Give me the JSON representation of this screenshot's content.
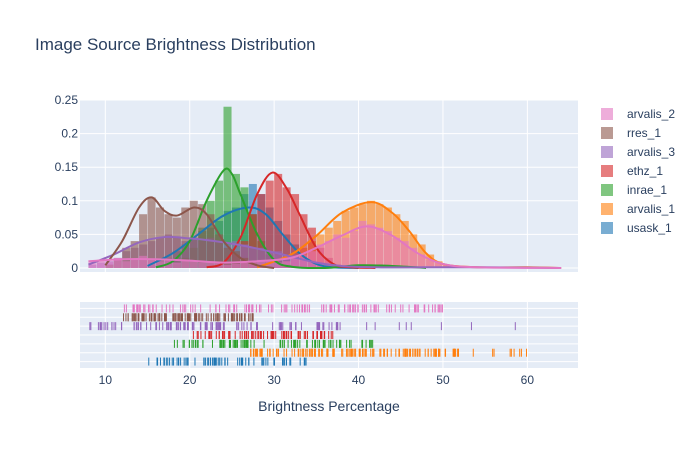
{
  "chart_data": {
    "type": "histogram",
    "title": "Image Source Brightness Distribution",
    "xlabel": "Brightness Percentage",
    "ylabel": "",
    "xlim": [
      7,
      66
    ],
    "ylim": [
      -0.006,
      0.25
    ],
    "x_ticks": [
      10,
      20,
      30,
      40,
      50,
      60
    ],
    "y_ticks": [
      0,
      0.05,
      0.1,
      0.15,
      0.2,
      0.25
    ],
    "y_tick_labels": [
      "0",
      "0.05",
      "0.1",
      "0.15",
      "0.2",
      "0.25"
    ],
    "grid": true,
    "legend_position": "right",
    "series": [
      {
        "name": "arvalis_2",
        "color": "#e377c2",
        "bins": [
          [
            8,
            0.01
          ],
          [
            9,
            0.012
          ],
          [
            10,
            0.01
          ],
          [
            11,
            0.015
          ],
          [
            12,
            0.01
          ],
          [
            13,
            0.012
          ],
          [
            14,
            0.018
          ],
          [
            15,
            0.014
          ],
          [
            16,
            0.01
          ],
          [
            17,
            0.012
          ],
          [
            18,
            0.008
          ],
          [
            19,
            0.012
          ],
          [
            20,
            0.01
          ],
          [
            21,
            0.008
          ],
          [
            22,
            0.01
          ],
          [
            23,
            0.008
          ],
          [
            24,
            0.005
          ],
          [
            25,
            0.006
          ],
          [
            26,
            0.008
          ],
          [
            27,
            0.01
          ],
          [
            28,
            0.012
          ],
          [
            29,
            0.01
          ],
          [
            30,
            0.008
          ],
          [
            31,
            0.01
          ],
          [
            32,
            0.015
          ],
          [
            33,
            0.02
          ],
          [
            34,
            0.025
          ],
          [
            35,
            0.035
          ],
          [
            36,
            0.04
          ],
          [
            37,
            0.05
          ],
          [
            38,
            0.045
          ],
          [
            39,
            0.055
          ],
          [
            40,
            0.07
          ],
          [
            41,
            0.065
          ],
          [
            42,
            0.06
          ],
          [
            43,
            0.055
          ],
          [
            44,
            0.045
          ],
          [
            45,
            0.04
          ],
          [
            46,
            0.03
          ],
          [
            47,
            0.02
          ],
          [
            48,
            0.012
          ],
          [
            49,
            0.008
          ],
          [
            50,
            0.004
          ],
          [
            51,
            0.002
          ]
        ],
        "curve": [
          [
            8,
            0.01
          ],
          [
            12,
            0.013
          ],
          [
            16,
            0.013
          ],
          [
            20,
            0.011
          ],
          [
            24,
            0.008
          ],
          [
            28,
            0.01
          ],
          [
            32,
            0.015
          ],
          [
            35,
            0.03
          ],
          [
            38,
            0.048
          ],
          [
            41,
            0.062
          ],
          [
            44,
            0.048
          ],
          [
            47,
            0.022
          ],
          [
            50,
            0.006
          ],
          [
            54,
            0.001
          ],
          [
            64,
            0
          ]
        ]
      },
      {
        "name": "rres_1",
        "color": "#8c564b",
        "bins": [
          [
            10,
            0.005
          ],
          [
            11,
            0.012
          ],
          [
            12,
            0.03
          ],
          [
            13,
            0.04
          ],
          [
            14,
            0.08
          ],
          [
            15,
            0.105
          ],
          [
            16,
            0.09
          ],
          [
            17,
            0.08
          ],
          [
            18,
            0.075
          ],
          [
            19,
            0.09
          ],
          [
            20,
            0.1
          ],
          [
            21,
            0.095
          ],
          [
            22,
            0.08
          ],
          [
            23,
            0.05
          ],
          [
            24,
            0.03
          ],
          [
            25,
            0.025
          ],
          [
            26,
            0.015
          ],
          [
            27,
            0.01
          ],
          [
            28,
            0.005
          ]
        ],
        "curve": [
          [
            10,
            0.004
          ],
          [
            12,
            0.04
          ],
          [
            14,
            0.09
          ],
          [
            15.5,
            0.105
          ],
          [
            17,
            0.085
          ],
          [
            18.5,
            0.078
          ],
          [
            20.5,
            0.09
          ],
          [
            22,
            0.08
          ],
          [
            24,
            0.04
          ],
          [
            26,
            0.015
          ],
          [
            28,
            0.004
          ],
          [
            30,
            0
          ]
        ]
      },
      {
        "name": "arvalis_3",
        "color": "#9467bd",
        "bins": [
          [
            8,
            0.005
          ],
          [
            9,
            0.008
          ],
          [
            10,
            0.01
          ],
          [
            11,
            0.015
          ],
          [
            12,
            0.025
          ],
          [
            13,
            0.03
          ],
          [
            14,
            0.035
          ],
          [
            15,
            0.04
          ],
          [
            16,
            0.045
          ],
          [
            17,
            0.05
          ],
          [
            18,
            0.045
          ],
          [
            19,
            0.04
          ],
          [
            20,
            0.045
          ],
          [
            21,
            0.04
          ],
          [
            22,
            0.045
          ],
          [
            23,
            0.04
          ],
          [
            24,
            0.035
          ],
          [
            25,
            0.04
          ],
          [
            26,
            0.035
          ],
          [
            27,
            0.03
          ],
          [
            28,
            0.03
          ],
          [
            29,
            0.025
          ],
          [
            30,
            0.025
          ],
          [
            31,
            0.02
          ],
          [
            32,
            0.02
          ],
          [
            33,
            0.015
          ],
          [
            34,
            0.01
          ],
          [
            35,
            0.008
          ],
          [
            36,
            0.005
          ],
          [
            37,
            0.003
          ]
        ],
        "curve": [
          [
            8,
            0.005
          ],
          [
            11,
            0.02
          ],
          [
            14,
            0.038
          ],
          [
            17,
            0.046
          ],
          [
            20,
            0.044
          ],
          [
            23,
            0.04
          ],
          [
            26,
            0.034
          ],
          [
            29,
            0.026
          ],
          [
            32,
            0.017
          ],
          [
            35,
            0.008
          ],
          [
            38,
            0.003
          ],
          [
            42,
            0.001
          ],
          [
            48,
            0.001
          ],
          [
            55,
            0.001
          ],
          [
            64,
            0
          ]
        ]
      },
      {
        "name": "ethz_1",
        "color": "#d62728",
        "bins": [
          [
            22,
            0.002
          ],
          [
            23,
            0.005
          ],
          [
            24,
            0.01
          ],
          [
            25,
            0.02
          ],
          [
            26,
            0.04
          ],
          [
            27,
            0.08
          ],
          [
            28,
            0.11
          ],
          [
            29,
            0.13
          ],
          [
            30,
            0.14
          ],
          [
            31,
            0.12
          ],
          [
            32,
            0.11
          ],
          [
            33,
            0.08
          ],
          [
            34,
            0.06
          ],
          [
            35,
            0.03
          ],
          [
            36,
            0.015
          ],
          [
            37,
            0.005
          ]
        ],
        "curve": [
          [
            22,
            0.001
          ],
          [
            24,
            0.008
          ],
          [
            26,
            0.045
          ],
          [
            28,
            0.11
          ],
          [
            29.8,
            0.142
          ],
          [
            31.5,
            0.118
          ],
          [
            33,
            0.08
          ],
          [
            35,
            0.03
          ],
          [
            37,
            0.006
          ],
          [
            39,
            0.001
          ],
          [
            42,
            0
          ]
        ]
      },
      {
        "name": "inrae_1",
        "color": "#2ca02c",
        "bins": [
          [
            18,
            0.005
          ],
          [
            19,
            0.015
          ],
          [
            20,
            0.03
          ],
          [
            21,
            0.06
          ],
          [
            22,
            0.1
          ],
          [
            23,
            0.13
          ],
          [
            24,
            0.24
          ],
          [
            25,
            0.14
          ],
          [
            26,
            0.12
          ],
          [
            27,
            0.08
          ],
          [
            28,
            0.04
          ],
          [
            29,
            0.02
          ],
          [
            30,
            0.01
          ],
          [
            31,
            0.005
          ]
        ],
        "curve": [
          [
            16,
            0.001
          ],
          [
            18,
            0.01
          ],
          [
            20,
            0.04
          ],
          [
            22,
            0.1
          ],
          [
            24,
            0.145
          ],
          [
            25,
            0.14
          ],
          [
            26,
            0.11
          ],
          [
            28,
            0.05
          ],
          [
            30,
            0.012
          ],
          [
            32,
            0.002
          ],
          [
            36,
            0
          ],
          [
            40,
            0.004
          ],
          [
            44,
            0.003
          ],
          [
            48,
            0
          ]
        ]
      },
      {
        "name": "arvalis_1",
        "color": "#ff7f0e",
        "bins": [
          [
            30,
            0.005
          ],
          [
            31,
            0.01
          ],
          [
            32,
            0.02
          ],
          [
            33,
            0.03
          ],
          [
            34,
            0.04
          ],
          [
            35,
            0.05
          ],
          [
            36,
            0.06
          ],
          [
            37,
            0.07
          ],
          [
            38,
            0.085
          ],
          [
            39,
            0.09
          ],
          [
            40,
            0.095
          ],
          [
            41,
            0.1
          ],
          [
            42,
            0.095
          ],
          [
            43,
            0.09
          ],
          [
            44,
            0.08
          ],
          [
            45,
            0.07
          ],
          [
            46,
            0.05
          ],
          [
            47,
            0.035
          ],
          [
            48,
            0.02
          ],
          [
            49,
            0.01
          ],
          [
            50,
            0.005
          ]
        ],
        "curve": [
          [
            28,
            0.001
          ],
          [
            32,
            0.02
          ],
          [
            35,
            0.048
          ],
          [
            38,
            0.082
          ],
          [
            41.5,
            0.098
          ],
          [
            44,
            0.082
          ],
          [
            46,
            0.055
          ],
          [
            48,
            0.022
          ],
          [
            50,
            0.006
          ],
          [
            54,
            0.001
          ],
          [
            60,
            0.001
          ],
          [
            64,
            0
          ]
        ]
      },
      {
        "name": "usask_1",
        "color": "#1f77b4",
        "bins": [
          [
            15,
            0.005
          ],
          [
            16,
            0.01
          ],
          [
            17,
            0.015
          ],
          [
            18,
            0.025
          ],
          [
            19,
            0.035
          ],
          [
            20,
            0.045
          ],
          [
            21,
            0.055
          ],
          [
            22,
            0.06
          ],
          [
            23,
            0.07
          ],
          [
            24,
            0.085
          ],
          [
            25,
            0.09
          ],
          [
            26,
            0.11
          ],
          [
            27,
            0.125
          ],
          [
            28,
            0.11
          ],
          [
            29,
            0.09
          ],
          [
            30,
            0.07
          ],
          [
            31,
            0.05
          ],
          [
            32,
            0.035
          ],
          [
            33,
            0.02
          ],
          [
            34,
            0.01
          ]
        ],
        "curve": [
          [
            15,
            0.003
          ],
          [
            18,
            0.022
          ],
          [
            21,
            0.05
          ],
          [
            24,
            0.078
          ],
          [
            27,
            0.09
          ],
          [
            29,
            0.08
          ],
          [
            31,
            0.05
          ],
          [
            33,
            0.022
          ],
          [
            35,
            0.006
          ],
          [
            37,
            0.001
          ],
          [
            40,
            0
          ]
        ]
      }
    ],
    "rug": [
      {
        "name": "arvalis_2",
        "range": [
          12,
          50
        ],
        "count": 130
      },
      {
        "name": "rres_1",
        "range": [
          12,
          28
        ],
        "count": 110
      },
      {
        "name": "arvalis_3",
        "range": [
          8,
          64
        ],
        "count": 120,
        "sparse_after": 38
      },
      {
        "name": "ethz_1",
        "range": [
          20,
          37
        ],
        "count": 80
      },
      {
        "name": "inrae_1",
        "range": [
          18,
          42
        ],
        "count": 90
      },
      {
        "name": "arvalis_1",
        "range": [
          27,
          60
        ],
        "count": 140,
        "sparse_after": 52
      },
      {
        "name": "usask_1",
        "range": [
          15,
          34
        ],
        "count": 70
      }
    ]
  }
}
